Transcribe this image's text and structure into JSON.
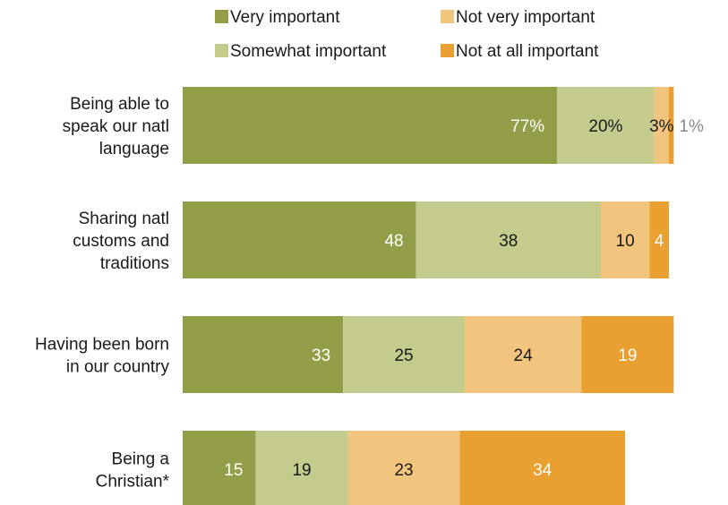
{
  "chart_data": {
    "type": "bar",
    "orientation": "horizontal",
    "stacked": true,
    "title": "",
    "xlabel": "",
    "ylabel": "",
    "xlim": [
      0,
      100
    ],
    "grid": false,
    "legend_position": "top",
    "categories": [
      [
        "Being able to",
        "speak our natl",
        "language"
      ],
      [
        "Sharing natl",
        "customs and",
        "traditions"
      ],
      [
        "Having been born",
        "in our country"
      ],
      [
        "Being a",
        "Christian*"
      ]
    ],
    "series": [
      {
        "name": "Very important",
        "color": "#949d48",
        "label_color": "#ffffff",
        "values": [
          77,
          48,
          33,
          15
        ],
        "labels": [
          "77%",
          "48",
          "33",
          "15"
        ]
      },
      {
        "name": "Somewhat important",
        "color": "#c5ca8d",
        "label_color": "#1a1a1a",
        "values": [
          20,
          38,
          25,
          19
        ],
        "labels": [
          "20%",
          "38",
          "25",
          "19"
        ]
      },
      {
        "name": "Not very important",
        "color": "#f2c57e",
        "label_color": "#1a1a1a",
        "values": [
          3,
          10,
          24,
          23
        ],
        "labels": [
          "3%",
          "10",
          "24",
          "23"
        ]
      },
      {
        "name": "Not at all important",
        "color": "#e9a030",
        "label_color": "#ffffff",
        "values": [
          1,
          4,
          19,
          34
        ],
        "labels": [
          "1%",
          "4",
          "19",
          "34"
        ]
      }
    ],
    "outside_label_color": "#888888"
  }
}
